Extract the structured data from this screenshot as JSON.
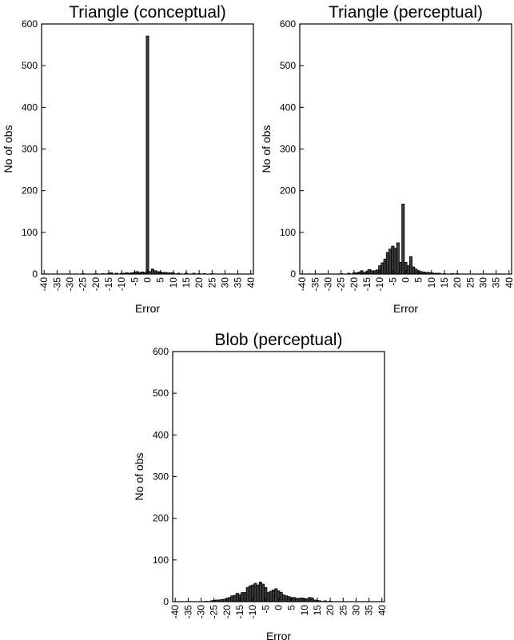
{
  "chart_data": [
    {
      "type": "bar",
      "title": "Triangle (conceptual)",
      "xlabel": "Error",
      "ylabel": "No of obs",
      "xlim": [
        -40,
        40
      ],
      "ylim": [
        0,
        600
      ],
      "xticks": [
        "-40",
        "-35",
        "-30",
        "-25",
        "-20",
        "-15",
        "-10",
        "-5",
        "0",
        "5",
        "10",
        "15",
        "20",
        "25",
        "30",
        "35",
        "40"
      ],
      "yticks": [
        "0",
        "100",
        "200",
        "300",
        "400",
        "500",
        "600"
      ],
      "grid": false,
      "x": [
        -25,
        -20,
        -17,
        -15,
        -14,
        -12,
        -10,
        -9,
        -8,
        -7,
        -6,
        -5,
        -4,
        -3,
        -2,
        -1,
        0,
        1,
        2,
        3,
        4,
        5,
        6,
        7,
        8,
        9,
        10,
        12,
        15,
        18,
        20,
        22,
        25
      ],
      "values": [
        1,
        1,
        1,
        2,
        3,
        2,
        2,
        2,
        3,
        2,
        3,
        4,
        6,
        4,
        5,
        4,
        571,
        6,
        12,
        8,
        6,
        5,
        4,
        4,
        3,
        3,
        3,
        2,
        2,
        2,
        1,
        1,
        1
      ]
    },
    {
      "type": "bar",
      "title": "Triangle (perceptual)",
      "xlabel": "Error",
      "ylabel": "No of obs",
      "xlim": [
        -40,
        40
      ],
      "ylim": [
        0,
        600
      ],
      "xticks": [
        "-40",
        "-35",
        "-30",
        "-25",
        "-20",
        "-15",
        "-10",
        "-5",
        "0",
        "5",
        "10",
        "15",
        "20",
        "25",
        "30",
        "35",
        "40"
      ],
      "yticks": [
        "0",
        "100",
        "200",
        "300",
        "400",
        "500",
        "600"
      ],
      "grid": false,
      "x": [
        -25,
        -22,
        -20,
        -19,
        -18,
        -17,
        -16,
        -15,
        -14,
        -13,
        -12,
        -11,
        -10,
        -9,
        -8,
        -7,
        -6,
        -5,
        -4,
        -3,
        -2,
        -1,
        0,
        1,
        2,
        3,
        4,
        5,
        6,
        7,
        8,
        9,
        10,
        11,
        12,
        13,
        15,
        18,
        20
      ],
      "values": [
        1,
        2,
        3,
        3,
        5,
        8,
        4,
        6,
        11,
        8,
        8,
        10,
        20,
        27,
        36,
        52,
        60,
        67,
        62,
        75,
        28,
        168,
        28,
        20,
        42,
        17,
        12,
        8,
        6,
        5,
        4,
        4,
        3,
        2,
        2,
        2,
        1,
        1,
        1
      ]
    },
    {
      "type": "bar",
      "title": "Blob (perceptual)",
      "xlabel": "Error",
      "ylabel": "No of obs",
      "xlim": [
        -40,
        40
      ],
      "ylim": [
        0,
        600
      ],
      "xticks": [
        "-40",
        "-35",
        "-30",
        "-25",
        "-20",
        "-15",
        "-10",
        "-5",
        "0",
        "5",
        "10",
        "15",
        "20",
        "25",
        "30",
        "35",
        "40"
      ],
      "yticks": [
        "0",
        "100",
        "200",
        "300",
        "400",
        "500",
        "600"
      ],
      "grid": false,
      "x": [
        -28,
        -26,
        -25,
        -24,
        -23,
        -22,
        -21,
        -20,
        -19,
        -18,
        -17,
        -16,
        -15,
        -14,
        -13,
        -12,
        -11,
        -10,
        -9,
        -8,
        -7,
        -6,
        -5,
        -4,
        -3,
        -2,
        -1,
        0,
        1,
        2,
        3,
        4,
        5,
        6,
        7,
        8,
        9,
        10,
        11,
        12,
        13,
        14,
        15,
        16,
        18,
        20
      ],
      "values": [
        1,
        2,
        3,
        4,
        4,
        5,
        6,
        8,
        10,
        14,
        15,
        20,
        17,
        22,
        22,
        34,
        38,
        40,
        44,
        40,
        47,
        42,
        34,
        22,
        25,
        28,
        31,
        26,
        22,
        16,
        14,
        12,
        10,
        10,
        8,
        8,
        9,
        7,
        7,
        10,
        9,
        4,
        3,
        2,
        2,
        1
      ]
    }
  ]
}
